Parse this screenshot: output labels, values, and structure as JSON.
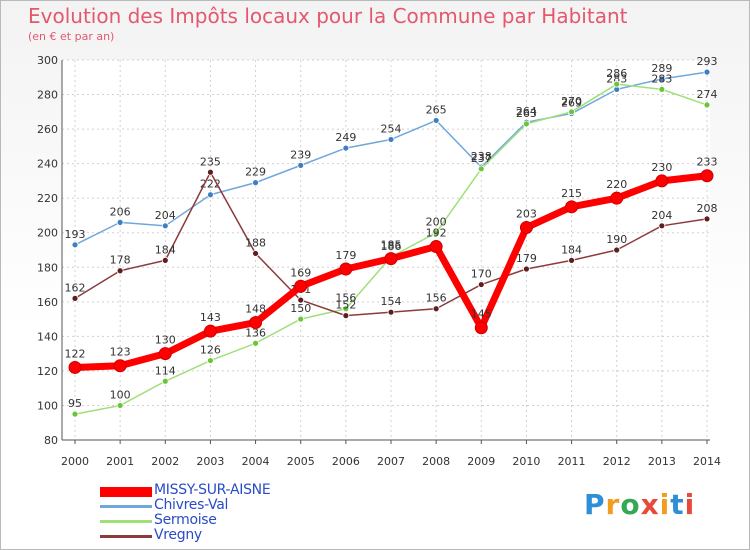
{
  "title": "Evolution des Impôts locaux pour la Commune par Habitant",
  "subtitle": "(en € et par an)",
  "logo_text": "Proxiti",
  "logo_colors": [
    "#2e8fd8",
    "#f39c1e",
    "#34a853",
    "#e84a3a",
    "#f39c1e",
    "#2e8fd8",
    "#e84a3a"
  ],
  "chart_data": {
    "type": "line",
    "x": [
      2000,
      2001,
      2002,
      2003,
      2004,
      2005,
      2006,
      2007,
      2008,
      2009,
      2010,
      2011,
      2012,
      2013,
      2014
    ],
    "ylim": [
      80,
      300
    ],
    "yticks": [
      80,
      100,
      120,
      140,
      160,
      180,
      200,
      220,
      240,
      260,
      280,
      300
    ],
    "grid": true,
    "legend": "bottom-left",
    "series": [
      {
        "name": "Chivres-Val",
        "color": "#6fa8dc",
        "marker": "#3d7fc0",
        "values": [
          193,
          206,
          204,
          222,
          229,
          239,
          249,
          254,
          265,
          238,
          264,
          269,
          283,
          289,
          293
        ]
      },
      {
        "name": "Sermoise",
        "color": "#9fe07a",
        "marker": "#6cc43a",
        "values": [
          95,
          100,
          114,
          126,
          136,
          150,
          156,
          186,
          200,
          237,
          263,
          270,
          286,
          283,
          274
        ]
      },
      {
        "name": "Vregny",
        "color": "#8b3b3b",
        "marker": "#5e1e1e",
        "values": [
          162,
          178,
          184,
          235,
          188,
          161,
          152,
          154,
          156,
          170,
          179,
          184,
          190,
          204,
          208
        ]
      },
      {
        "name": "MISSY-SUR-AISNE",
        "color": "#ff0000",
        "marker": "#ff0000",
        "values": [
          122,
          123,
          130,
          143,
          148,
          169,
          179,
          185,
          192,
          145,
          203,
          215,
          220,
          230,
          233
        ]
      }
    ]
  }
}
